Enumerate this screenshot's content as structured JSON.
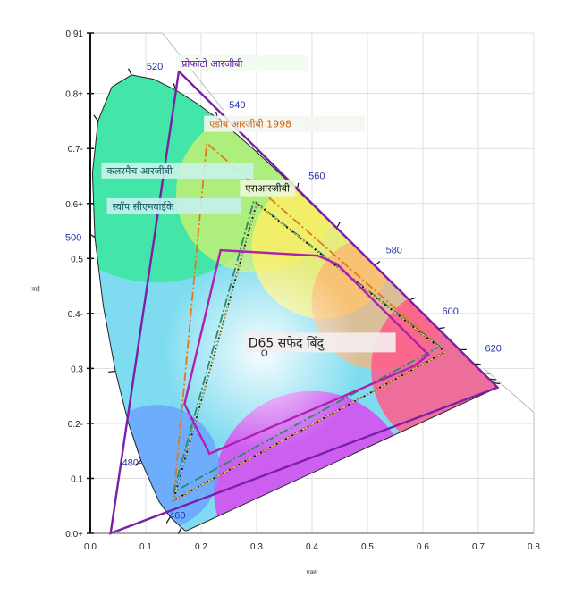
{
  "chart_data": {
    "type": "scatter",
    "title": "",
    "xlabel": "एक्स",
    "ylabel": "वाई",
    "xlim": [
      0,
      0.8
    ],
    "ylim": [
      0,
      0.91
    ],
    "grid": true,
    "x_ticks": [
      {
        "value": 0.0,
        "label": "0.0"
      },
      {
        "value": 0.1,
        "label": "0.1"
      },
      {
        "value": 0.2,
        "label": "0.2"
      },
      {
        "value": 0.3,
        "label": "0.3"
      },
      {
        "value": 0.4,
        "label": "0.4"
      },
      {
        "value": 0.5,
        "label": "0.5"
      },
      {
        "value": 0.6,
        "label": "0.6"
      },
      {
        "value": 0.7,
        "label": "0.7"
      },
      {
        "value": 0.8,
        "label": "0.8"
      }
    ],
    "y_ticks": [
      {
        "value": 0.0,
        "label": "0.0+"
      },
      {
        "value": 0.1,
        "label": "0.1"
      },
      {
        "value": 0.2,
        "label": "0.2-"
      },
      {
        "value": 0.3,
        "label": "0.3"
      },
      {
        "value": 0.4,
        "label": "0.4-"
      },
      {
        "value": 0.5,
        "label": "0.5"
      },
      {
        "value": 0.6,
        "label": "0.6+"
      },
      {
        "value": 0.7,
        "label": "0.7-"
      },
      {
        "value": 0.8,
        "label": "0.8+"
      },
      {
        "value": 0.91,
        "label": "0.91"
      }
    ],
    "spectral_locus": [
      [
        0.1741,
        0.005
      ],
      [
        0.1738,
        0.0049
      ],
      [
        0.1733,
        0.0048
      ],
      [
        0.1726,
        0.0048
      ],
      [
        0.1714,
        0.0051
      ],
      [
        0.1689,
        0.0069
      ],
      [
        0.1644,
        0.0109
      ],
      [
        0.1566,
        0.0177
      ],
      [
        0.144,
        0.0297
      ],
      [
        0.1241,
        0.0578
      ],
      [
        0.0913,
        0.1327
      ],
      [
        0.0687,
        0.2007
      ],
      [
        0.0454,
        0.295
      ],
      [
        0.0235,
        0.4127
      ],
      [
        0.0082,
        0.5384
      ],
      [
        0.0039,
        0.6548
      ],
      [
        0.0139,
        0.7502
      ],
      [
        0.0389,
        0.812
      ],
      [
        0.0743,
        0.8338
      ],
      [
        0.1142,
        0.8262
      ],
      [
        0.1547,
        0.8059
      ],
      [
        0.1929,
        0.7816
      ],
      [
        0.2296,
        0.7543
      ],
      [
        0.2658,
        0.7243
      ],
      [
        0.3016,
        0.6923
      ],
      [
        0.3373,
        0.6589
      ],
      [
        0.3731,
        0.6245
      ],
      [
        0.4087,
        0.5896
      ],
      [
        0.4441,
        0.5547
      ],
      [
        0.4788,
        0.5202
      ],
      [
        0.5125,
        0.4866
      ],
      [
        0.5448,
        0.4544
      ],
      [
        0.5752,
        0.4242
      ],
      [
        0.6029,
        0.3965
      ],
      [
        0.627,
        0.3725
      ],
      [
        0.6482,
        0.3514
      ],
      [
        0.6658,
        0.334
      ],
      [
        0.6801,
        0.3197
      ],
      [
        0.6915,
        0.3083
      ],
      [
        0.7006,
        0.2993
      ],
      [
        0.7079,
        0.292
      ],
      [
        0.714,
        0.2859
      ],
      [
        0.719,
        0.2809
      ],
      [
        0.723,
        0.277
      ],
      [
        0.726,
        0.274
      ],
      [
        0.7347,
        0.2653
      ]
    ],
    "wavelength_labels": [
      {
        "label": "460",
        "x": 0.144,
        "y": 0.0297
      },
      {
        "label": "480-",
        "x": 0.0913,
        "y": 0.1327
      },
      {
        "label": "500",
        "x": 0.0082,
        "y": 0.5384
      },
      {
        "label": "520",
        "x": 0.0743,
        "y": 0.8338
      },
      {
        "label": "540",
        "x": 0.2296,
        "y": 0.7543
      },
      {
        "label": "560",
        "x": 0.3731,
        "y": 0.6245
      },
      {
        "label": "580",
        "x": 0.5125,
        "y": 0.4866
      },
      {
        "label": "600",
        "x": 0.627,
        "y": 0.3725
      },
      {
        "label": "620",
        "x": 0.6915,
        "y": 0.3083
      }
    ],
    "series": [
      {
        "name": "प्रोफोटो आरजीबी",
        "color": "#7a1fa8",
        "dash": "solid",
        "points": [
          [
            0.7347,
            0.2653
          ],
          [
            0.1596,
            0.8404
          ],
          [
            0.0366,
            0.0001
          ]
        ]
      },
      {
        "name": "एडोब आरजीबी 1998",
        "color": "#e07a1a",
        "dash": "dashdot",
        "points": [
          [
            0.64,
            0.33
          ],
          [
            0.21,
            0.71
          ],
          [
            0.15,
            0.06
          ]
        ]
      },
      {
        "name": "कलरमैच आरजीबी",
        "color": "#2a8a6a",
        "dash": "dashdot",
        "points": [
          [
            0.63,
            0.34
          ],
          [
            0.295,
            0.605
          ],
          [
            0.15,
            0.075
          ]
        ]
      },
      {
        "name": "एसआरजीबी",
        "color": "#111111",
        "dash": "dotted",
        "points": [
          [
            0.64,
            0.33
          ],
          [
            0.3,
            0.6
          ],
          [
            0.15,
            0.06
          ]
        ]
      },
      {
        "name": "स्वॉप सीएमवाईके",
        "color": "#b020b0",
        "dash": "solid",
        "points": [
          [
            0.235,
            0.515
          ],
          [
            0.41,
            0.505
          ],
          [
            0.445,
            0.49
          ],
          [
            0.61,
            0.325
          ],
          [
            0.585,
            0.305
          ],
          [
            0.215,
            0.145
          ],
          [
            0.17,
            0.235
          ]
        ]
      }
    ],
    "white_point": {
      "name": "D65 सफेद बिंदु",
      "marker": "O",
      "x": 0.3127,
      "y": 0.329
    }
  }
}
